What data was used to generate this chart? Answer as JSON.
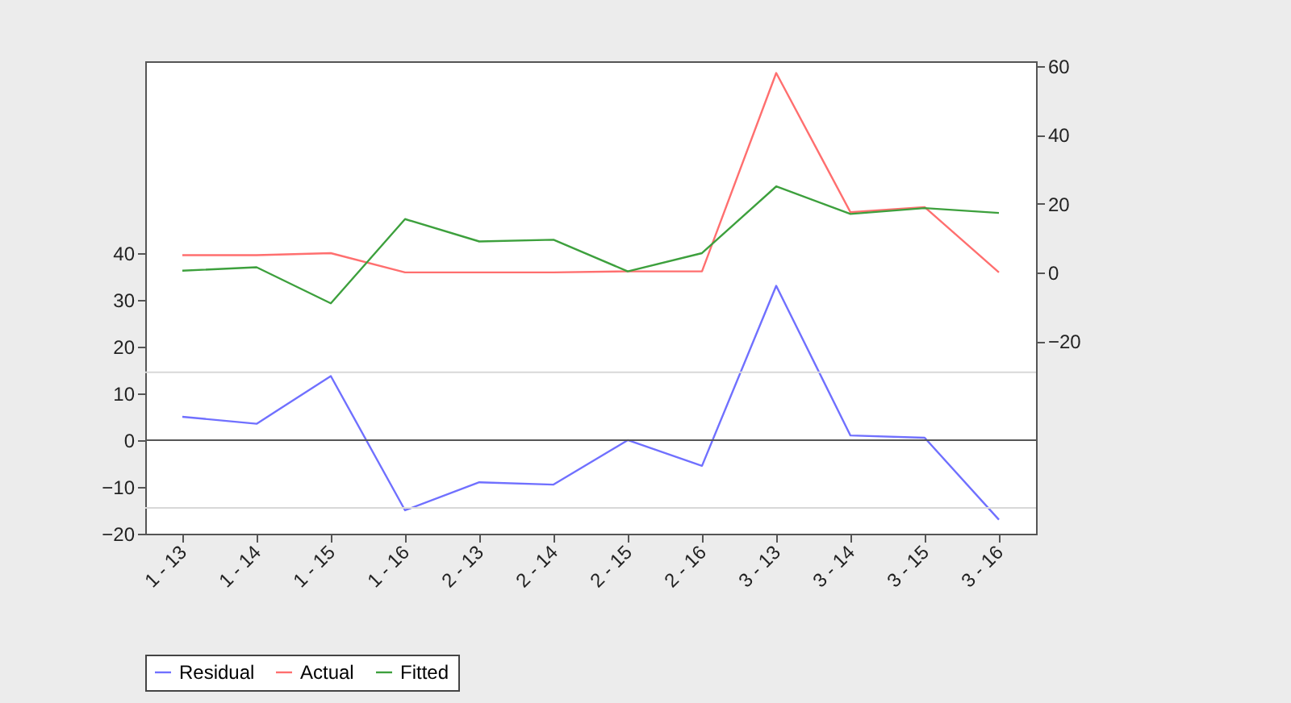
{
  "chart_data": {
    "type": "line",
    "categories": [
      "1 - 13",
      "1 - 14",
      "1 - 15",
      "1 - 16",
      "2 - 13",
      "2 - 14",
      "2 - 15",
      "2 - 16",
      "3 - 13",
      "3 - 14",
      "3 - 15",
      "3 - 16"
    ],
    "series": [
      {
        "name": "Residual",
        "color": "#7070ff",
        "values": [
          5,
          3.5,
          13.7,
          -15,
          -9,
          -9.5,
          0,
          -5.5,
          33,
          1,
          0.5,
          -17
        ]
      },
      {
        "name": "Actual",
        "color": "#ff6f6f",
        "axis": "y2",
        "values": [
          5,
          5,
          5.6,
          0,
          0,
          0,
          0.3,
          0.3,
          58,
          17.5,
          19,
          0
        ]
      },
      {
        "name": "Fitted",
        "color": "#3da03d",
        "axis": "y2",
        "values": [
          0.5,
          1.5,
          -9,
          15.5,
          9,
          9.5,
          0.3,
          5.6,
          25,
          17,
          18.7,
          17.3
        ]
      }
    ],
    "ylim": [
      -20,
      81
    ],
    "yticks": [
      -20,
      -10,
      0,
      10,
      20,
      30,
      40
    ],
    "y2lim": [
      -76,
      61.4
    ],
    "y2ticks": [
      -20,
      0,
      20,
      40,
      60
    ],
    "ref_lines": [
      {
        "axis": "y",
        "value": 0,
        "color": "#555555"
      },
      {
        "axis": "y",
        "value": 14.5,
        "color": "#d8d8d8"
      },
      {
        "axis": "y",
        "value": -14.5,
        "color": "#d8d8d8"
      }
    ],
    "grid": false,
    "legend": "bottom",
    "line_style": "solid"
  }
}
